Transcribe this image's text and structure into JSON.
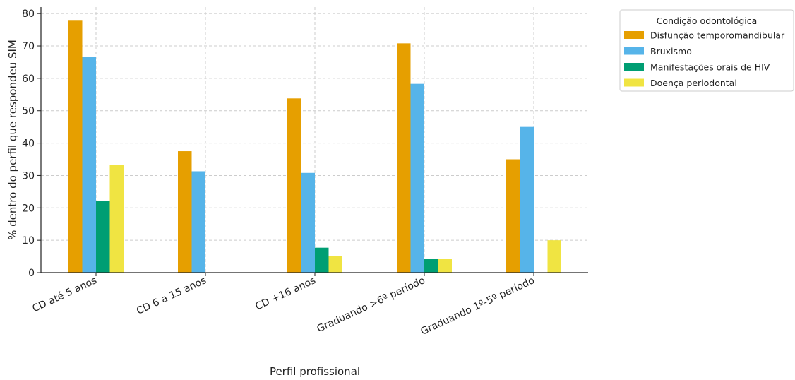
{
  "chart_data": {
    "type": "bar",
    "xlabel": "Perfil profissional",
    "ylabel": "% dentro do perfil que respondeu SIM",
    "ylim": [
      0,
      82
    ],
    "yticks": [
      0,
      10,
      20,
      30,
      40,
      50,
      60,
      70,
      80
    ],
    "grid": true,
    "legend_position": "top-right outside",
    "categories": [
      "CD até 5 anos",
      "CD 6 a 15 anos",
      "CD +16 anos",
      "Graduando >6º período",
      "Graduando 1º-5º período"
    ],
    "legend_title": "Condição odontológica",
    "series": [
      {
        "name": "Disfunção temporomandibular",
        "color": "#E69F00",
        "values": [
          77.8,
          37.5,
          53.8,
          70.8,
          35.0
        ]
      },
      {
        "name": "Bruxismo",
        "color": "#56B4E9",
        "values": [
          66.7,
          31.3,
          30.8,
          58.3,
          45.0
        ]
      },
      {
        "name": "Manifestações orais de HIV",
        "color": "#009E73",
        "values": [
          22.2,
          0,
          7.7,
          4.2,
          0
        ]
      },
      {
        "name": "Doença periodontal",
        "color": "#F0E442",
        "values": [
          33.3,
          0,
          5.1,
          4.2,
          10.0
        ]
      }
    ]
  }
}
